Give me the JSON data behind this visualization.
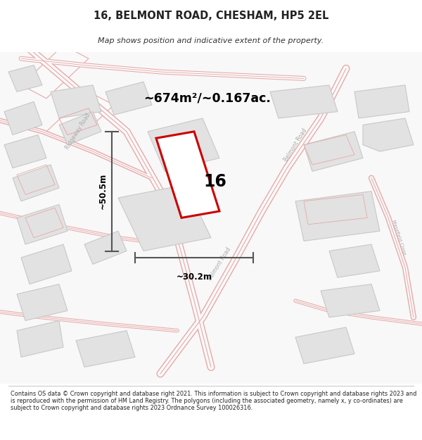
{
  "title": "16, BELMONT ROAD, CHESHAM, HP5 2EL",
  "subtitle": "Map shows position and indicative extent of the property.",
  "area_label": "~674m²/~0.167ac.",
  "property_number": "16",
  "dim_width": "~30.2m",
  "dim_height": "~50.5m",
  "footer": "Contains OS data © Crown copyright and database right 2021. This information is subject to Crown copyright and database rights 2023 and is reproduced with the permission of HM Land Registry. The polygons (including the associated geometry, namely x, y co-ordinates) are subject to Crown copyright and database rights 2023 Ordnance Survey 100026316.",
  "map_bg": "#f9f9f9",
  "block_fill": "#e2e2e2",
  "block_edge": "#c8c8c8",
  "road_fill": "#f9f9f9",
  "road_edge": "#e8a8a8",
  "prop_edge": "#cc0000",
  "prop_fill": "#ffffff",
  "label_color": "#333333",
  "road_label_color": "#aaaaaa",
  "dim_line_color": "#555555"
}
